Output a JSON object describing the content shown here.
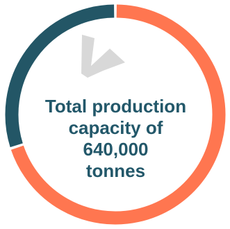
{
  "colors": {
    "primary": "#ff7650",
    "secondary": "#235666",
    "watermark": "#d8d8d8",
    "text": "#23586a"
  },
  "center_text": {
    "line1": "Total production",
    "line2": "capacity of",
    "line3": "640,000",
    "line4": "tonnes"
  },
  "chart_data": {
    "type": "pie",
    "title": "",
    "slices": [
      {
        "value": 70,
        "color": "#ff7650"
      },
      {
        "value": 30,
        "color": "#235666"
      }
    ],
    "grid": false,
    "legend": "none"
  }
}
